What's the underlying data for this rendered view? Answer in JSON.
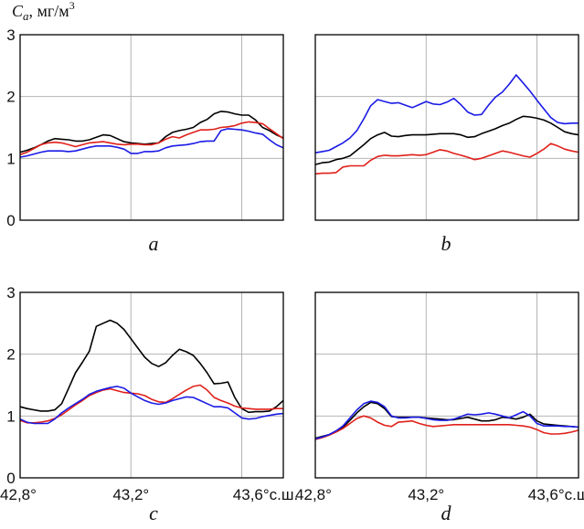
{
  "chart_data": {
    "type": "line",
    "ylabel": {
      "symbol": "C",
      "subscript": "a",
      "unit": ", мг/м",
      "unit_sup": "3"
    },
    "x": [
      42.8,
      42.825,
      42.85,
      42.875,
      42.9,
      42.925,
      42.95,
      42.975,
      43.0,
      43.025,
      43.05,
      43.075,
      43.1,
      43.125,
      43.15,
      43.175,
      43.2,
      43.225,
      43.25,
      43.275,
      43.3,
      43.325,
      43.35,
      43.375,
      43.4,
      43.425,
      43.45,
      43.475,
      43.5,
      43.525,
      43.55,
      43.575,
      43.6,
      43.625,
      43.65,
      43.675,
      43.7,
      43.725,
      43.75
    ],
    "ylim": [
      0,
      3
    ],
    "xlim": [
      42.8,
      43.75
    ],
    "yticks": [
      "0",
      "1",
      "2",
      "3"
    ],
    "xticks": [
      {
        "value": 42.8,
        "label": "42,8°"
      },
      {
        "value": 43.2,
        "label": "43,2°"
      },
      {
        "value": 43.6,
        "label": "43,6°с.ш."
      }
    ],
    "colors": {
      "black": "#000000",
      "red": "#e0201a",
      "blue": "#1a1ae6",
      "grid": "#b4b4b4"
    },
    "panels": [
      {
        "id": "a",
        "label": "a",
        "series": [
          {
            "color": "black",
            "values": [
              1.1,
              1.13,
              1.17,
              1.22,
              1.28,
              1.32,
              1.31,
              1.3,
              1.28,
              1.28,
              1.3,
              1.34,
              1.38,
              1.37,
              1.32,
              1.27,
              1.25,
              1.24,
              1.23,
              1.24,
              1.25,
              1.35,
              1.42,
              1.45,
              1.47,
              1.5,
              1.58,
              1.63,
              1.72,
              1.76,
              1.75,
              1.72,
              1.7,
              1.7,
              1.62,
              1.5,
              1.45,
              1.38,
              1.33
            ]
          },
          {
            "color": "red",
            "values": [
              1.06,
              1.1,
              1.16,
              1.22,
              1.25,
              1.26,
              1.25,
              1.22,
              1.19,
              1.22,
              1.25,
              1.26,
              1.27,
              1.25,
              1.23,
              1.22,
              1.23,
              1.23,
              1.22,
              1.22,
              1.25,
              1.31,
              1.35,
              1.33,
              1.38,
              1.42,
              1.46,
              1.46,
              1.47,
              1.5,
              1.51,
              1.53,
              1.57,
              1.59,
              1.58,
              1.56,
              1.48,
              1.4,
              1.32
            ]
          },
          {
            "color": "blue",
            "values": [
              1.02,
              1.04,
              1.07,
              1.1,
              1.12,
              1.12,
              1.12,
              1.11,
              1.12,
              1.15,
              1.18,
              1.2,
              1.2,
              1.2,
              1.18,
              1.15,
              1.08,
              1.08,
              1.11,
              1.11,
              1.12,
              1.17,
              1.2,
              1.21,
              1.22,
              1.24,
              1.27,
              1.28,
              1.28,
              1.45,
              1.48,
              1.47,
              1.46,
              1.44,
              1.41,
              1.39,
              1.3,
              1.22,
              1.17
            ]
          }
        ]
      },
      {
        "id": "b",
        "label": "b",
        "series": [
          {
            "color": "black",
            "values": [
              0.9,
              0.93,
              0.94,
              0.98,
              1.0,
              1.04,
              1.13,
              1.22,
              1.32,
              1.38,
              1.42,
              1.36,
              1.35,
              1.37,
              1.38,
              1.38,
              1.38,
              1.39,
              1.4,
              1.4,
              1.4,
              1.38,
              1.34,
              1.35,
              1.4,
              1.44,
              1.48,
              1.53,
              1.57,
              1.63,
              1.68,
              1.67,
              1.65,
              1.62,
              1.57,
              1.5,
              1.43,
              1.4,
              1.38
            ]
          },
          {
            "color": "red",
            "values": [
              0.75,
              0.76,
              0.76,
              0.77,
              0.86,
              0.88,
              0.88,
              0.88,
              0.97,
              1.03,
              1.05,
              1.04,
              1.04,
              1.05,
              1.06,
              1.05,
              1.06,
              1.1,
              1.14,
              1.12,
              1.08,
              1.05,
              1.02,
              0.98,
              1.0,
              1.04,
              1.08,
              1.12,
              1.1,
              1.07,
              1.04,
              1.02,
              1.08,
              1.15,
              1.24,
              1.2,
              1.15,
              1.12,
              1.1
            ]
          },
          {
            "color": "blue",
            "values": [
              1.09,
              1.11,
              1.13,
              1.19,
              1.25,
              1.33,
              1.45,
              1.64,
              1.85,
              1.95,
              1.92,
              1.89,
              1.9,
              1.86,
              1.82,
              1.87,
              1.92,
              1.88,
              1.87,
              1.91,
              1.97,
              1.87,
              1.75,
              1.7,
              1.71,
              1.86,
              1.99,
              2.07,
              2.2,
              2.35,
              2.22,
              2.09,
              1.94,
              1.8,
              1.66,
              1.58,
              1.56,
              1.57,
              1.57
            ]
          }
        ]
      },
      {
        "id": "c",
        "label": "c",
        "series": [
          {
            "color": "black",
            "values": [
              1.15,
              1.12,
              1.1,
              1.08,
              1.08,
              1.1,
              1.2,
              1.45,
              1.7,
              1.87,
              2.05,
              2.45,
              2.5,
              2.55,
              2.5,
              2.4,
              2.25,
              2.1,
              1.95,
              1.85,
              1.8,
              1.86,
              1.98,
              2.08,
              2.04,
              1.98,
              1.85,
              1.7,
              1.52,
              1.53,
              1.55,
              1.3,
              1.12,
              1.06,
              1.07,
              1.07,
              1.08,
              1.15,
              1.25
            ]
          },
          {
            "color": "red",
            "values": [
              0.93,
              0.89,
              0.89,
              0.9,
              0.92,
              0.96,
              1.02,
              1.1,
              1.18,
              1.25,
              1.33,
              1.38,
              1.42,
              1.44,
              1.41,
              1.38,
              1.37,
              1.36,
              1.33,
              1.27,
              1.23,
              1.22,
              1.28,
              1.35,
              1.42,
              1.48,
              1.5,
              1.42,
              1.3,
              1.25,
              1.21,
              1.16,
              1.13,
              1.12,
              1.11,
              1.11,
              1.11,
              1.12,
              1.12
            ]
          },
          {
            "color": "blue",
            "values": [
              0.95,
              0.9,
              0.88,
              0.88,
              0.88,
              0.95,
              1.05,
              1.13,
              1.2,
              1.27,
              1.35,
              1.4,
              1.43,
              1.46,
              1.48,
              1.45,
              1.37,
              1.31,
              1.25,
              1.21,
              1.19,
              1.21,
              1.25,
              1.28,
              1.31,
              1.3,
              1.25,
              1.2,
              1.15,
              1.15,
              1.13,
              1.05,
              0.97,
              0.95,
              0.96,
              0.99,
              1.01,
              1.03,
              1.04
            ]
          }
        ]
      },
      {
        "id": "d",
        "label": "d",
        "series": [
          {
            "color": "black",
            "values": [
              0.64,
              0.67,
              0.7,
              0.75,
              0.82,
              0.93,
              1.05,
              1.15,
              1.22,
              1.2,
              1.12,
              0.99,
              0.98,
              0.98,
              0.98,
              0.98,
              0.97,
              0.96,
              0.95,
              0.94,
              0.94,
              0.96,
              0.98,
              0.95,
              0.92,
              0.92,
              0.94,
              0.98,
              0.97,
              0.95,
              0.98,
              1.03,
              0.92,
              0.87,
              0.86,
              0.85,
              0.84,
              0.83,
              0.82
            ]
          },
          {
            "color": "red",
            "values": [
              0.62,
              0.65,
              0.69,
              0.74,
              0.8,
              0.88,
              0.96,
              1.0,
              0.97,
              0.9,
              0.85,
              0.83,
              0.9,
              0.91,
              0.92,
              0.88,
              0.85,
              0.83,
              0.84,
              0.85,
              0.86,
              0.86,
              0.86,
              0.86,
              0.86,
              0.86,
              0.86,
              0.86,
              0.86,
              0.85,
              0.84,
              0.82,
              0.78,
              0.73,
              0.71,
              0.71,
              0.72,
              0.74,
              0.77
            ]
          },
          {
            "color": "blue",
            "values": [
              0.63,
              0.66,
              0.7,
              0.76,
              0.84,
              0.97,
              1.1,
              1.2,
              1.24,
              1.22,
              1.15,
              1.0,
              0.97,
              0.97,
              0.98,
              0.98,
              0.96,
              0.94,
              0.93,
              0.93,
              0.95,
              0.99,
              1.03,
              1.02,
              1.03,
              1.05,
              1.03,
              1.0,
              0.97,
              1.02,
              1.07,
              1.0,
              0.88,
              0.84,
              0.84,
              0.84,
              0.83,
              0.83,
              0.82
            ]
          }
        ]
      }
    ]
  }
}
